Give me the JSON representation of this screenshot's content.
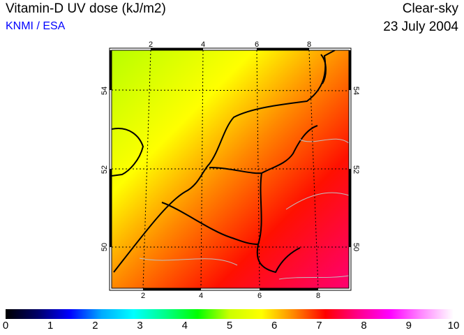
{
  "header": {
    "title": "Vitamin-D UV dose (kJ/m2)",
    "credit": "KNMI / ESA",
    "condition": "Clear-sky",
    "date": "23 July 2004"
  },
  "map": {
    "lon_ticks_top": [
      "2",
      "4",
      "6",
      "8"
    ],
    "lon_ticks_bottom": [
      "2",
      "4",
      "6",
      "8"
    ],
    "lat_ticks_left": [
      "54",
      "52",
      "50"
    ],
    "lat_ticks_right": [
      "54",
      "52",
      "50"
    ]
  },
  "colorbar": {
    "min": 0,
    "max": 10,
    "labels": [
      "0",
      "1",
      "2",
      "3",
      "4",
      "5",
      "6",
      "7",
      "8",
      "9",
      "10"
    ],
    "stops": [
      "#000000",
      "#000066",
      "#0000ff",
      "#00aaff",
      "#00ffff",
      "#00ff88",
      "#00ff00",
      "#ccff00",
      "#ffff00",
      "#ff8800",
      "#ff0000",
      "#ff0088",
      "#ff00ff",
      "#ff88ff",
      "#ffffff"
    ]
  }
}
